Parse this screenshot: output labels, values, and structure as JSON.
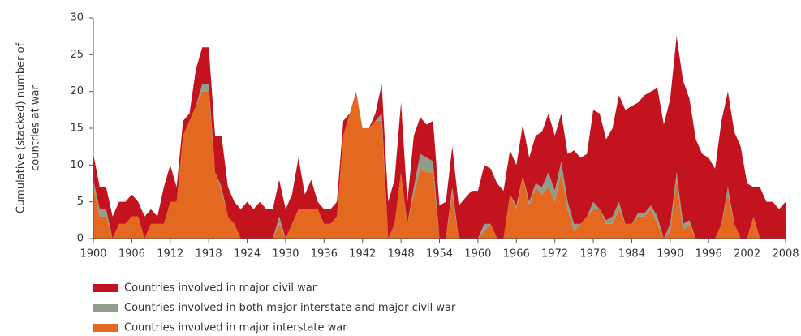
{
  "chart_data": {
    "type": "stacked_area",
    "ylabel": [
      "Cumulative (stacked) number of",
      "countries at war"
    ],
    "x": [
      1900,
      1901,
      1902,
      1903,
      1904,
      1905,
      1906,
      1907,
      1908,
      1909,
      1910,
      1911,
      1912,
      1913,
      1914,
      1915,
      1916,
      1917,
      1918,
      1919,
      1920,
      1921,
      1922,
      1923,
      1924,
      1925,
      1926,
      1927,
      1928,
      1929,
      1930,
      1931,
      1932,
      1933,
      1934,
      1935,
      1936,
      1937,
      1938,
      1939,
      1940,
      1941,
      1942,
      1943,
      1944,
      1945,
      1946,
      1947,
      1948,
      1949,
      1950,
      1951,
      1952,
      1953,
      1954,
      1955,
      1956,
      1957,
      1958,
      1959,
      1960,
      1961,
      1962,
      1963,
      1964,
      1965,
      1966,
      1967,
      1968,
      1969,
      1970,
      1971,
      1972,
      1973,
      1974,
      1975,
      1976,
      1977,
      1978,
      1979,
      1980,
      1981,
      1982,
      1983,
      1984,
      1985,
      1986,
      1987,
      1988,
      1989,
      1990,
      1991,
      1992,
      1993,
      1994,
      1995,
      1996,
      1997,
      1998,
      1999,
      2000,
      2001,
      2002,
      2003,
      2004,
      2005,
      2006,
      2007,
      2008
    ],
    "series": [
      {
        "name": "Countries involved in major interstate war",
        "color": "#e2691f",
        "values": [
          7,
          3,
          3,
          0,
          2,
          2,
          3,
          3,
          0,
          2,
          2,
          2,
          5,
          5,
          14,
          16,
          18,
          20,
          20,
          9,
          6.5,
          3,
          2,
          0,
          0,
          0,
          0,
          0,
          0,
          2,
          0,
          2,
          4,
          4,
          4,
          4,
          2,
          2,
          3,
          14,
          17,
          20,
          15,
          15,
          16,
          16,
          0,
          2,
          9,
          2,
          6,
          9.5,
          9,
          9,
          0,
          0,
          6,
          0,
          0,
          0,
          0,
          1,
          2,
          0,
          0,
          6,
          4,
          8.5,
          4.5,
          7,
          6,
          7,
          5,
          9,
          4,
          1,
          2,
          3,
          4,
          4,
          2,
          2,
          4,
          2,
          2,
          3,
          3,
          4,
          2,
          0,
          1,
          8,
          1,
          2,
          0,
          0,
          0,
          0,
          2,
          6,
          2,
          0,
          0,
          3,
          0,
          0,
          0,
          0,
          0
        ]
      },
      {
        "name": "Countries involved in both major interstate and major civil war",
        "color": "#8f9d8c",
        "values": [
          1,
          1,
          1,
          0,
          0,
          0,
          0,
          0,
          0,
          0,
          0,
          0,
          0,
          0,
          0,
          0,
          0,
          1,
          1,
          0,
          0.5,
          0,
          0,
          0,
          0,
          0,
          0,
          0,
          0,
          1,
          0,
          0,
          0,
          0,
          0,
          0,
          0,
          0,
          0,
          0,
          0,
          0,
          0,
          0,
          0,
          1,
          0,
          0,
          0,
          0,
          1,
          2,
          2,
          1.5,
          0,
          0,
          1,
          0,
          0,
          0,
          0,
          1,
          0,
          0,
          0,
          0,
          0.5,
          0,
          0.5,
          0.5,
          1,
          2,
          1.5,
          1.5,
          1,
          1,
          0,
          0,
          1,
          0,
          0.5,
          1,
          1,
          0,
          0,
          0.5,
          0.5,
          0.5,
          1,
          0,
          1,
          1,
          1,
          0.5,
          0,
          0,
          0,
          0,
          0,
          1,
          0,
          0,
          0,
          0,
          0,
          0,
          0,
          0,
          0
        ]
      },
      {
        "name": "Countries involved in major civil war",
        "color": "#c3131f",
        "values": [
          3.5,
          3,
          3,
          3,
          3,
          3,
          3,
          2,
          3,
          2,
          1,
          5,
          5,
          2,
          2,
          1,
          5,
          5,
          5,
          5,
          7,
          4,
          3,
          4,
          5,
          4,
          5,
          4,
          4,
          5,
          4,
          4,
          7,
          2,
          4,
          1,
          2,
          2,
          2,
          2,
          0,
          0,
          0,
          0,
          1,
          4,
          5,
          6,
          9.5,
          3,
          7,
          5,
          4.5,
          5.5,
          4.5,
          5,
          5.5,
          4.5,
          5.5,
          6.5,
          6.5,
          8,
          7.5,
          7.5,
          6.5,
          6,
          5.5,
          7,
          6,
          6.5,
          7.5,
          8,
          7.5,
          6.5,
          6.5,
          10,
          9,
          8.5,
          12.5,
          13,
          11,
          12,
          14.5,
          15.5,
          16,
          15,
          16,
          15.5,
          17.5,
          15.5,
          17,
          18.5,
          19.5,
          16.5,
          13.5,
          11.5,
          11,
          9.5,
          14,
          13,
          12.5,
          12.5,
          7.5,
          4,
          7,
          5,
          5,
          4,
          5
        ]
      }
    ],
    "xlim": [
      1900,
      2008
    ],
    "xticks": [
      1900,
      1906,
      1912,
      1918,
      1924,
      1930,
      1936,
      1942,
      1948,
      1954,
      1960,
      1966,
      1972,
      1978,
      1984,
      1990,
      1996,
      2002,
      2008
    ],
    "ylim": [
      0,
      30
    ],
    "yticks": [
      0,
      5,
      10,
      15,
      20,
      25,
      30
    ]
  }
}
